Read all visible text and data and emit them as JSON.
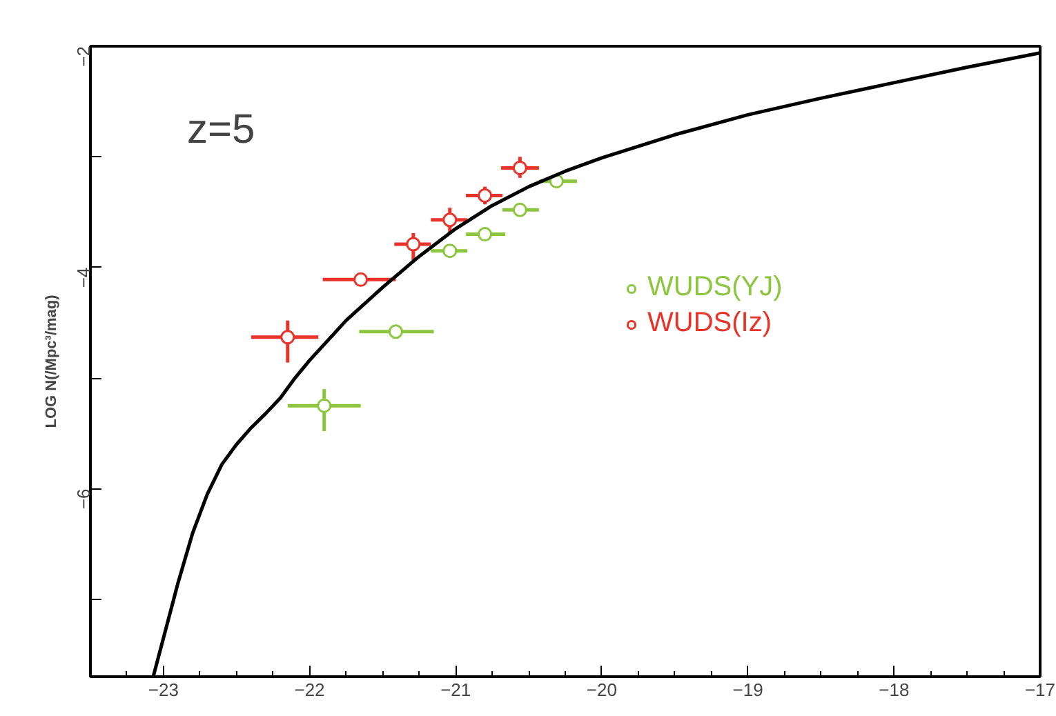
{
  "chart_data": {
    "type": "scatter",
    "ylabel": "LOG N(/Mpc³/mag)",
    "annotations": [
      "z=5"
    ],
    "xlim": [
      -23.5,
      -17
    ],
    "ylim": [
      -7.7,
      -2
    ],
    "xticks": [
      -23,
      -22,
      -21,
      -20,
      -19,
      -18,
      -17
    ],
    "yticks": [
      -2,
      {
        "value": -3,
        "label": null
      },
      -4,
      {
        "value": -5,
        "label": null
      },
      -6,
      {
        "value": -7,
        "label": null
      }
    ],
    "grid": false,
    "legend": "right",
    "marker": "circle",
    "series": [
      {
        "name": "WUDS(YJ)",
        "color": "#8cc63f",
        "x": [
          -21.9,
          -21.41,
          -21.04,
          -20.8,
          -20.56,
          -20.31
        ],
        "values": [
          -5.25,
          -4.58,
          -3.85,
          -3.7,
          -3.48,
          -3.22
        ],
        "xerrors": [
          [
            -22.15,
            -21.65
          ],
          [
            -21.66,
            -21.15
          ],
          [
            -21.17,
            -20.92
          ],
          [
            -20.93,
            -20.66
          ],
          [
            -20.68,
            -20.43
          ],
          [
            -20.43,
            -20.17
          ]
        ],
        "errors": [
          [
            -5.48,
            -5.1
          ],
          [
            -4.63,
            -4.53
          ],
          [
            -3.91,
            -3.79
          ],
          [
            -3.75,
            -3.65
          ],
          [
            -3.53,
            -3.43
          ],
          [
            -3.27,
            -3.17
          ]
        ]
      },
      {
        "name": "WUDS(Iz)",
        "color": "#e8332a",
        "x": [
          -22.15,
          -21.65,
          -21.29,
          -21.04,
          -20.8,
          -20.56
        ],
        "values": [
          -4.63,
          -4.11,
          -3.79,
          -3.57,
          -3.35,
          -3.1
        ],
        "xerrors": [
          [
            -22.4,
            -21.94
          ],
          [
            -21.91,
            -21.41
          ],
          [
            -21.42,
            -21.17
          ],
          [
            -21.17,
            -20.92
          ],
          [
            -20.93,
            -20.68
          ],
          [
            -20.69,
            -20.43
          ]
        ],
        "errors": [
          [
            -4.86,
            -4.48
          ],
          [
            -4.16,
            -4.06
          ],
          [
            -3.94,
            -3.69
          ],
          [
            -3.69,
            -3.46
          ],
          [
            -3.43,
            -3.27
          ],
          [
            -3.19,
            -3.0
          ]
        ]
      },
      {
        "type": "line",
        "marker": "none",
        "color": "#000000",
        "x": [
          -23.07,
          -23.0,
          -22.9,
          -22.8,
          -22.7,
          -22.6,
          -22.5,
          -22.4,
          -22.3,
          -22.2,
          -22.1,
          -22.0,
          -21.75,
          -21.5,
          -21.25,
          -21.0,
          -20.75,
          -20.5,
          -20.25,
          -20.0,
          -19.5,
          -19.0,
          -18.5,
          -18.0,
          -17.5,
          -17.0
        ],
        "values": [
          -7.7,
          -7.35,
          -6.85,
          -6.4,
          -6.05,
          -5.78,
          -5.6,
          -5.45,
          -5.32,
          -5.18,
          -5.0,
          -4.84,
          -4.48,
          -4.18,
          -3.9,
          -3.65,
          -3.44,
          -3.27,
          -3.13,
          -3.01,
          -2.8,
          -2.62,
          -2.47,
          -2.33,
          -2.19,
          -2.06
        ]
      }
    ]
  }
}
